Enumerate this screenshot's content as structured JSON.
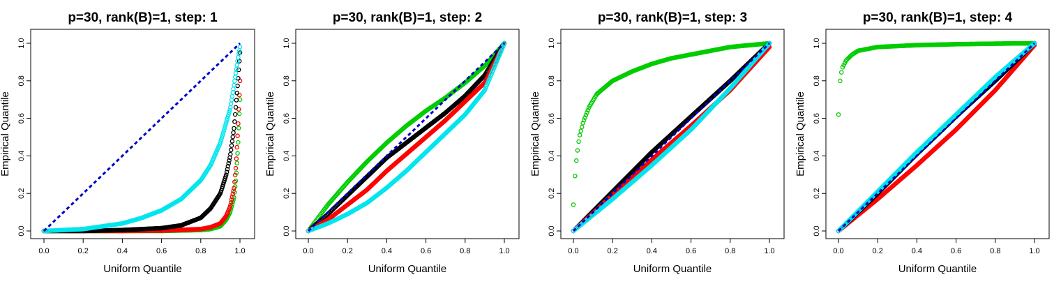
{
  "chart_data": [
    {
      "type": "scatter",
      "title": "p=30, rank(B)=1, step: 1",
      "xlabel": "Uniform Quantile",
      "ylabel": "Empirical Quantile",
      "xlim": [
        0,
        1
      ],
      "ylim": [
        0,
        1
      ],
      "xticks": [
        "0.0",
        "0.2",
        "0.4",
        "0.6",
        "0.8",
        "1.0"
      ],
      "yticks": [
        "0.0",
        "0.2",
        "0.4",
        "0.6",
        "0.8",
        "1.0"
      ],
      "grid": false,
      "reference_line": {
        "x": [
          0,
          1
        ],
        "y": [
          0,
          1
        ],
        "color": "#0000CD",
        "style": "dashed"
      },
      "series": [
        {
          "color": "#00CC00",
          "x": [
            0,
            0.2,
            0.4,
            0.6,
            0.8,
            0.85,
            0.9,
            0.93,
            0.95,
            0.97,
            0.98,
            0.99,
            1.0
          ],
          "y": [
            0,
            0,
            0,
            0,
            0.005,
            0.01,
            0.025,
            0.06,
            0.1,
            0.18,
            0.28,
            0.45,
            0.7
          ]
        },
        {
          "color": "#FF0000",
          "x": [
            0,
            0.2,
            0.4,
            0.6,
            0.8,
            0.85,
            0.9,
            0.93,
            0.95,
            0.97,
            0.98,
            0.99,
            1.0
          ],
          "y": [
            0,
            0,
            0,
            0.002,
            0.01,
            0.02,
            0.04,
            0.08,
            0.13,
            0.23,
            0.35,
            0.55,
            0.8
          ]
        },
        {
          "color": "#000000",
          "x": [
            0,
            0.2,
            0.4,
            0.6,
            0.7,
            0.8,
            0.85,
            0.9,
            0.93,
            0.95,
            0.97,
            0.99,
            1.0
          ],
          "y": [
            0,
            0,
            0.005,
            0.015,
            0.03,
            0.07,
            0.12,
            0.2,
            0.3,
            0.4,
            0.55,
            0.8,
            0.95
          ]
        },
        {
          "color": "#00E5EE",
          "x": [
            0,
            0.2,
            0.4,
            0.5,
            0.6,
            0.7,
            0.8,
            0.85,
            0.9,
            0.95,
            0.97,
            0.99,
            1.0
          ],
          "y": [
            0,
            0.01,
            0.04,
            0.07,
            0.11,
            0.17,
            0.27,
            0.35,
            0.47,
            0.65,
            0.78,
            0.92,
            0.98
          ]
        }
      ]
    },
    {
      "type": "scatter",
      "title": "p=30, rank(B)=1, step: 2",
      "xlabel": "Uniform Quantile",
      "ylabel": "Empirical Quantile",
      "xlim": [
        0,
        1
      ],
      "ylim": [
        0,
        1
      ],
      "xticks": [
        "0.0",
        "0.2",
        "0.4",
        "0.6",
        "0.8",
        "1.0"
      ],
      "yticks": [
        "0.0",
        "0.2",
        "0.4",
        "0.6",
        "0.8",
        "1.0"
      ],
      "grid": false,
      "reference_line": {
        "x": [
          0,
          1
        ],
        "y": [
          0,
          1
        ],
        "color": "#0000CD",
        "style": "dashed"
      },
      "series": [
        {
          "color": "#00CC00",
          "x": [
            0,
            0.1,
            0.2,
            0.3,
            0.4,
            0.5,
            0.6,
            0.7,
            0.8,
            0.9,
            1.0
          ],
          "y": [
            0,
            0.14,
            0.26,
            0.37,
            0.47,
            0.56,
            0.64,
            0.71,
            0.79,
            0.88,
            1.0
          ]
        },
        {
          "color": "#000000",
          "x": [
            0,
            0.1,
            0.2,
            0.3,
            0.4,
            0.5,
            0.6,
            0.7,
            0.8,
            0.9,
            1.0
          ],
          "y": [
            0,
            0.09,
            0.19,
            0.29,
            0.39,
            0.47,
            0.55,
            0.63,
            0.72,
            0.83,
            1.0
          ]
        },
        {
          "color": "#FF0000",
          "x": [
            0,
            0.1,
            0.2,
            0.3,
            0.4,
            0.5,
            0.6,
            0.7,
            0.8,
            0.9,
            1.0
          ],
          "y": [
            0,
            0.06,
            0.14,
            0.22,
            0.32,
            0.41,
            0.5,
            0.59,
            0.69,
            0.79,
            1.0
          ]
        },
        {
          "color": "#00E5EE",
          "x": [
            0,
            0.1,
            0.2,
            0.3,
            0.4,
            0.5,
            0.6,
            0.7,
            0.8,
            0.9,
            1.0
          ],
          "y": [
            0,
            0.04,
            0.09,
            0.15,
            0.23,
            0.32,
            0.42,
            0.52,
            0.62,
            0.75,
            1.0
          ]
        }
      ]
    },
    {
      "type": "scatter",
      "title": "p=30, rank(B)=1, step: 3",
      "xlabel": "Uniform Quantile",
      "ylabel": "Empirical Quantile",
      "xlim": [
        0,
        1
      ],
      "ylim": [
        0,
        1
      ],
      "xticks": [
        "0.0",
        "0.2",
        "0.4",
        "0.6",
        "0.8",
        "1.0"
      ],
      "yticks": [
        "0.0",
        "0.2",
        "0.4",
        "0.6",
        "0.8",
        "1.0"
      ],
      "grid": false,
      "reference_line": {
        "x": [
          0,
          1
        ],
        "y": [
          0,
          1
        ],
        "color": "#0000CD",
        "style": "dashed"
      },
      "series": [
        {
          "color": "#00CC00",
          "x": [
            0,
            0.005,
            0.01,
            0.02,
            0.03,
            0.05,
            0.08,
            0.12,
            0.2,
            0.3,
            0.4,
            0.5,
            0.6,
            0.7,
            0.8,
            0.9,
            1.0
          ],
          "y": [
            0.14,
            0.22,
            0.33,
            0.42,
            0.5,
            0.58,
            0.66,
            0.73,
            0.8,
            0.85,
            0.89,
            0.92,
            0.94,
            0.96,
            0.98,
            0.99,
            1.0
          ]
        },
        {
          "color": "#000000",
          "x": [
            0,
            0.2,
            0.4,
            0.6,
            0.8,
            1.0
          ],
          "y": [
            0,
            0.21,
            0.42,
            0.61,
            0.8,
            1.0
          ]
        },
        {
          "color": "#FF0000",
          "x": [
            0,
            0.2,
            0.4,
            0.6,
            0.8,
            1.0
          ],
          "y": [
            0,
            0.19,
            0.38,
            0.56,
            0.75,
            0.98
          ]
        },
        {
          "color": "#00E5EE",
          "x": [
            0,
            0.2,
            0.4,
            0.6,
            0.8,
            1.0
          ],
          "y": [
            0,
            0.17,
            0.35,
            0.54,
            0.76,
            1.0
          ]
        }
      ]
    },
    {
      "type": "scatter",
      "title": "p=30, rank(B)=1, step: 4",
      "xlabel": "Uniform Quantile",
      "ylabel": "Empirical Quantile",
      "xlim": [
        0,
        1
      ],
      "ylim": [
        0,
        1
      ],
      "xticks": [
        "0.0",
        "0.2",
        "0.4",
        "0.6",
        "0.8",
        "1.0"
      ],
      "yticks": [
        "0.0",
        "0.2",
        "0.4",
        "0.6",
        "0.8",
        "1.0"
      ],
      "grid": false,
      "reference_line": {
        "x": [
          0,
          1
        ],
        "y": [
          0,
          1
        ],
        "color": "#0000CD",
        "style": "dashed"
      },
      "series": [
        {
          "color": "#00CC00",
          "x": [
            0,
            0.002,
            0.005,
            0.01,
            0.02,
            0.04,
            0.07,
            0.1,
            0.2,
            0.4,
            0.6,
            0.8,
            1.0
          ],
          "y": [
            0.62,
            0.7,
            0.76,
            0.82,
            0.87,
            0.91,
            0.94,
            0.96,
            0.98,
            0.99,
            0.995,
            0.998,
            1.0
          ]
        },
        {
          "color": "#FF0000",
          "x": [
            0,
            0.2,
            0.4,
            0.6,
            0.8,
            1.0
          ],
          "y": [
            0,
            0.17,
            0.35,
            0.54,
            0.75,
            0.99
          ]
        },
        {
          "color": "#000000",
          "x": [
            0,
            0.2,
            0.4,
            0.6,
            0.8,
            1.0
          ],
          "y": [
            0,
            0.2,
            0.41,
            0.61,
            0.8,
            1.0
          ]
        },
        {
          "color": "#00E5EE",
          "x": [
            0,
            0.2,
            0.4,
            0.6,
            0.8,
            1.0
          ],
          "y": [
            0,
            0.21,
            0.42,
            0.62,
            0.82,
            1.0
          ]
        }
      ]
    }
  ]
}
